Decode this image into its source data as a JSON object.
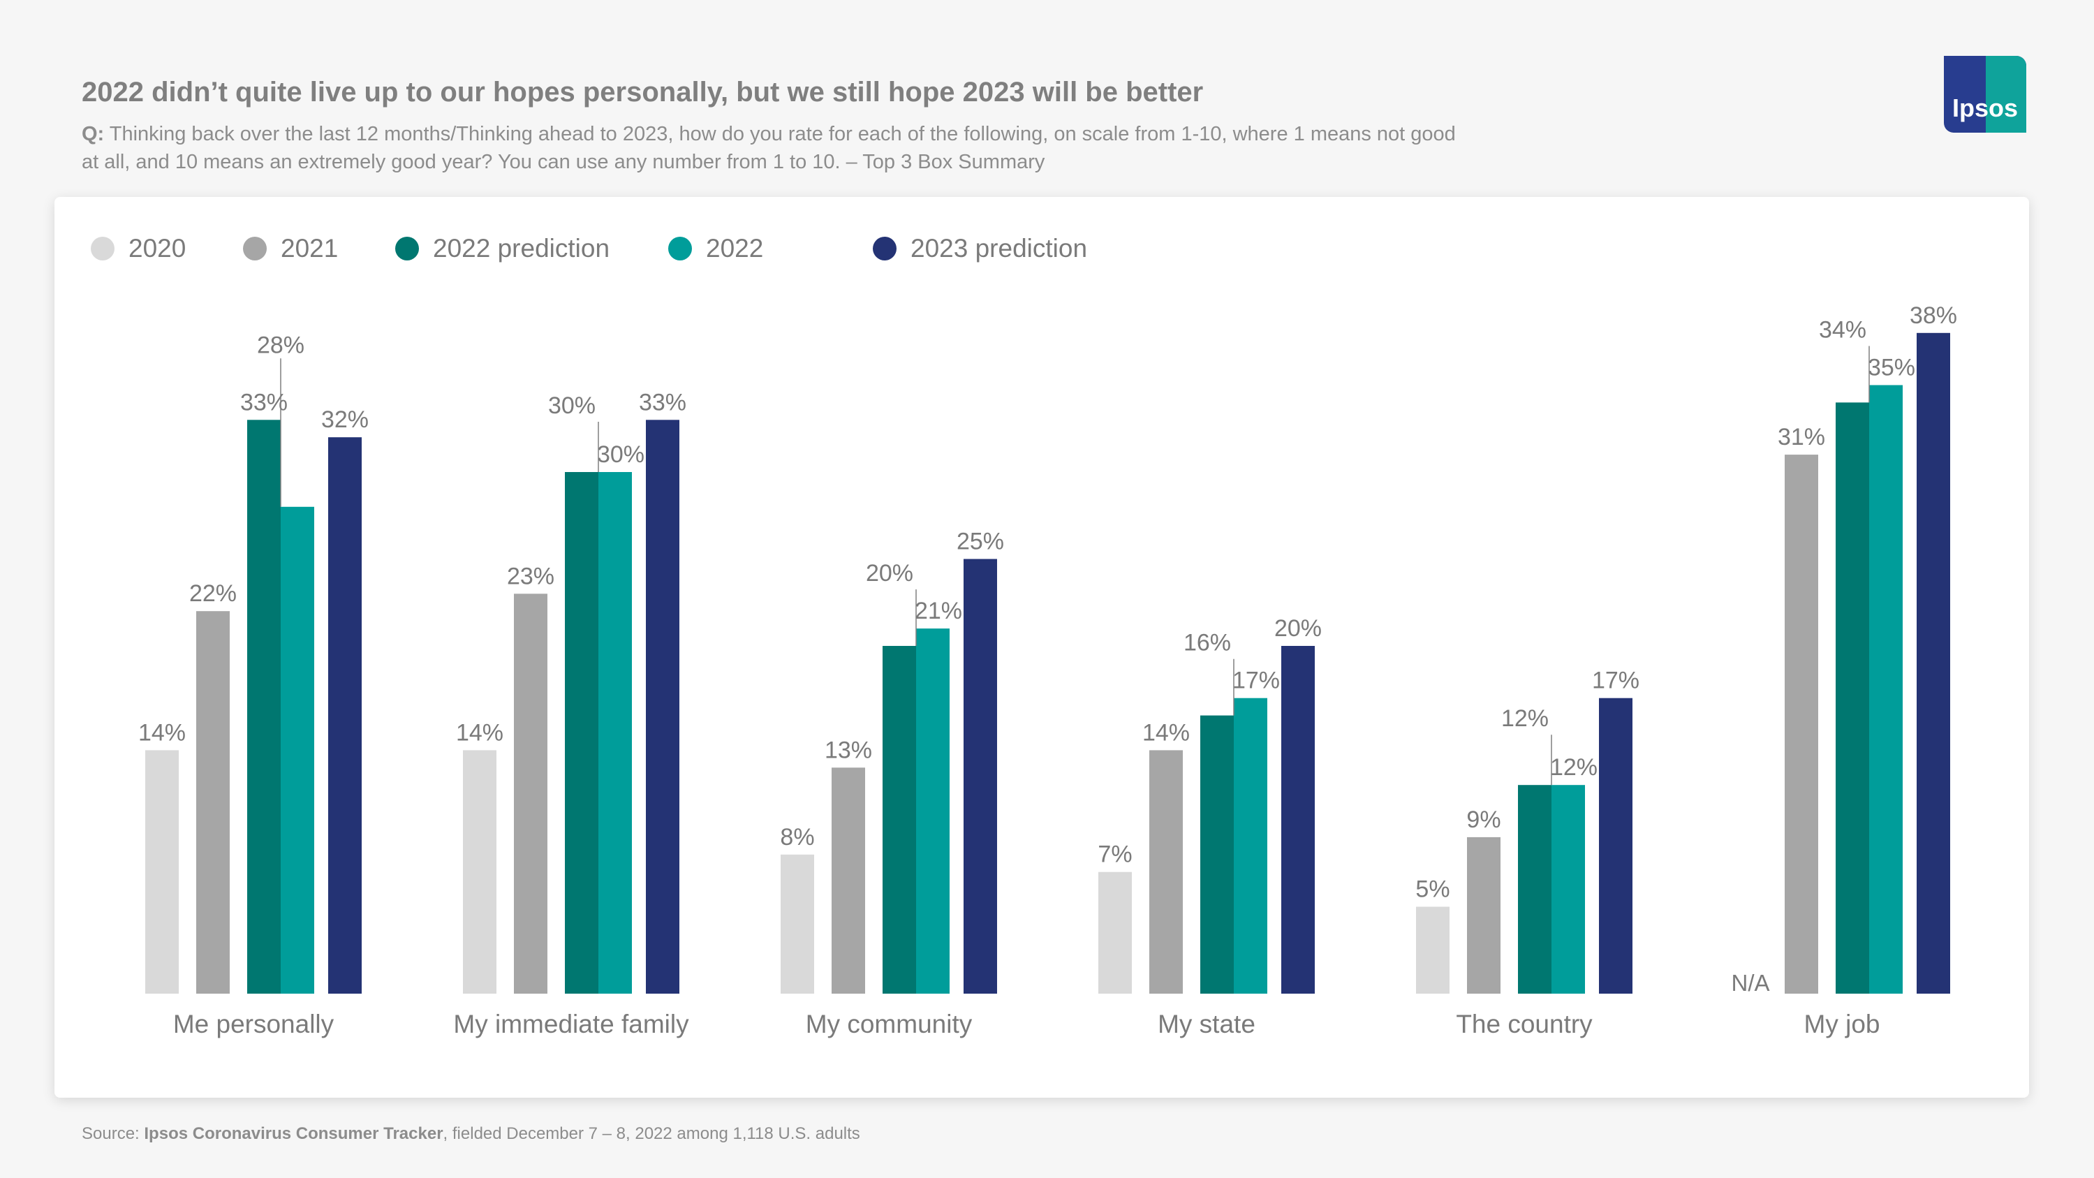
{
  "header": {
    "title": "2022 didn’t quite live up to our hopes personally, but we still hope 2023 will be better",
    "question_prefix": "Q:",
    "question_text": "Thinking back over the last 12 months/Thinking ahead to 2023, how do you rate for each of the following, on scale from 1-10, where 1 means not good at all, and 10 means an extremely good year? You can use any number from 1 to 10. – Top 3 Box Summary"
  },
  "logo": {
    "text": "Ipsos"
  },
  "chart_data": {
    "type": "bar",
    "title": "",
    "xlabel": "",
    "ylabel": "",
    "ylim": [
      0,
      40
    ],
    "grid": false,
    "legend_position": "top-left",
    "categories": [
      "Me personally",
      "My immediate family",
      "My community",
      "My state",
      "The country",
      "My job"
    ],
    "series": [
      {
        "name": "2020",
        "color": "#d9d9d9",
        "values": [
          14,
          14,
          8,
          7,
          5,
          null
        ],
        "labels": [
          "14%",
          "14%",
          "8%",
          "7%",
          "5%",
          "N/A"
        ]
      },
      {
        "name": "2021",
        "color": "#a6a6a6",
        "values": [
          22,
          23,
          13,
          14,
          9,
          31
        ],
        "labels": [
          "22%",
          "23%",
          "13%",
          "14%",
          "9%",
          "31%"
        ]
      },
      {
        "name": "2022 prediction",
        "color": "#007770",
        "values": [
          33,
          30,
          20,
          16,
          12,
          34
        ],
        "labels": [
          "33%",
          "30%",
          "20%",
          "16%",
          "12%",
          "34%"
        ]
      },
      {
        "name": "2022",
        "color": "#009d9a",
        "values": [
          28,
          30,
          21,
          17,
          12,
          35
        ],
        "labels": [
          "28%",
          "30%",
          "21%",
          "17%",
          "12%",
          "35%"
        ]
      },
      {
        "name": "2023 prediction",
        "color": "#243374",
        "values": [
          32,
          33,
          25,
          20,
          17,
          38
        ],
        "labels": [
          "32%",
          "33%",
          "25%",
          "20%",
          "17%",
          "38%"
        ]
      }
    ]
  },
  "footer": {
    "source_prefix": "Source:",
    "source_name": "Ipsos Coronavirus Consumer Tracker",
    "source_rest": ", fielded December 7 – 8, 2022 among 1,118 U.S. adults"
  }
}
